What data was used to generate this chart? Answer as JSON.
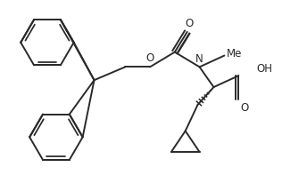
{
  "bg_color": "#ffffff",
  "line_color": "#2a2a2a",
  "line_width": 1.4,
  "figsize": [
    3.44,
    2.06
  ],
  "dpi": 100,
  "labels": {
    "O_up": "O",
    "O_ester": "O",
    "N": "N",
    "Me": "Me",
    "OH": "OH",
    "O_down": "O"
  }
}
